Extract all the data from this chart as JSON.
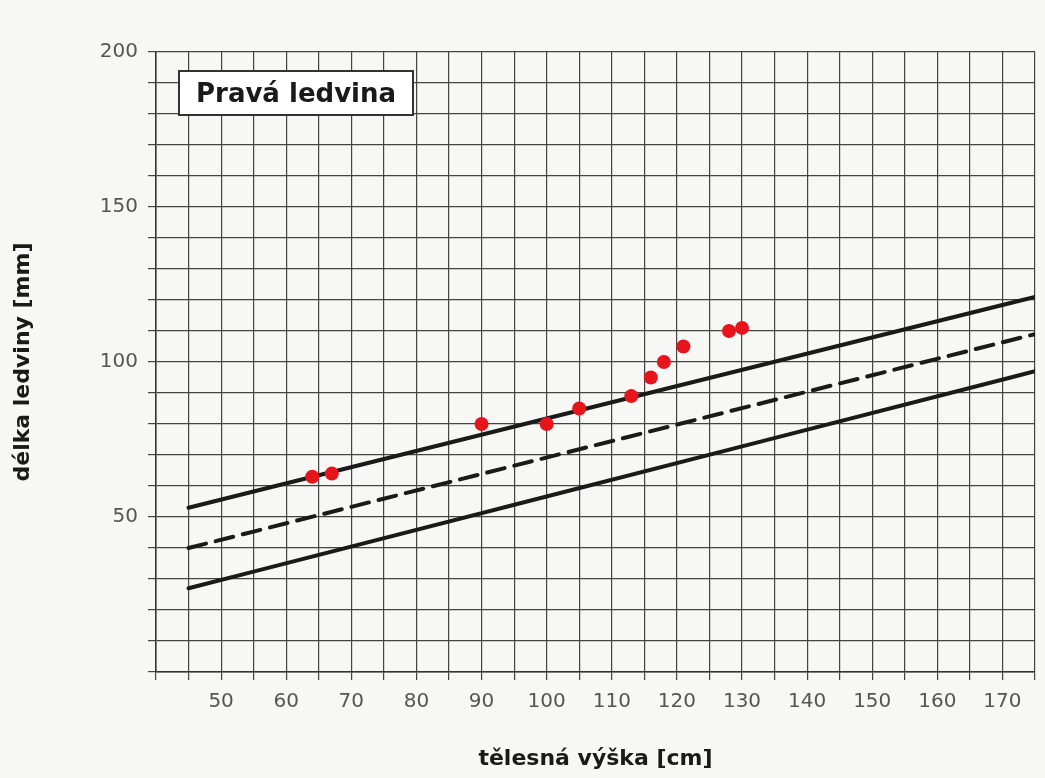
{
  "chart_data": {
    "type": "scatter",
    "title": "Pravá ledvina",
    "xlabel": "tělesná výška [cm]",
    "ylabel": "délka ledviny [mm]",
    "xlim": [
      40,
      175
    ],
    "ylim": [
      0,
      200
    ],
    "xticks": [
      {
        "value": 40,
        "label": null
      },
      {
        "value": 45,
        "label": null
      },
      50,
      {
        "value": 55,
        "label": null
      },
      60,
      {
        "value": 65,
        "label": null
      },
      70,
      {
        "value": 75,
        "label": null
      },
      80,
      {
        "value": 85,
        "label": null
      },
      90,
      {
        "value": 95,
        "label": null
      },
      100,
      {
        "value": 105,
        "label": null
      },
      110,
      {
        "value": 115,
        "label": null
      },
      120,
      {
        "value": 125,
        "label": null
      },
      130,
      {
        "value": 135,
        "label": null
      },
      140,
      {
        "value": 145,
        "label": null
      },
      150,
      {
        "value": 155,
        "label": null
      },
      160,
      {
        "value": 165,
        "label": null
      },
      170,
      {
        "value": 175,
        "label": null
      }
    ],
    "yticks": [
      {
        "value": 0,
        "label": null
      },
      {
        "value": 10,
        "label": null
      },
      {
        "value": 20,
        "label": null
      },
      {
        "value": 30,
        "label": null
      },
      {
        "value": 40,
        "label": null
      },
      50,
      {
        "value": 60,
        "label": null
      },
      {
        "value": 70,
        "label": null
      },
      {
        "value": 80,
        "label": null
      },
      {
        "value": 90,
        "label": null
      },
      100,
      {
        "value": 110,
        "label": null
      },
      {
        "value": 120,
        "label": null
      },
      {
        "value": 130,
        "label": null
      },
      {
        "value": 140,
        "label": null
      },
      150,
      {
        "value": 160,
        "label": null
      },
      {
        "value": 170,
        "label": null
      },
      {
        "value": 180,
        "label": null
      },
      {
        "value": 190,
        "label": null
      },
      200
    ],
    "grid": true,
    "series": [
      {
        "type": "line",
        "color": "#1a1a1a",
        "line_style": "solid",
        "x": [
          45,
          175
        ],
        "values": [
          53,
          121
        ]
      },
      {
        "type": "line",
        "color": "#1a1a1a",
        "line_style": "dashed",
        "x": [
          45,
          175
        ],
        "values": [
          40,
          109
        ]
      },
      {
        "type": "line",
        "color": "#1a1a1a",
        "line_style": "solid",
        "x": [
          45,
          175
        ],
        "values": [
          27,
          97
        ]
      },
      {
        "type": "scatter",
        "color": "#e8141c",
        "marker": "circle",
        "x": [
          64,
          67,
          90,
          100,
          105,
          113,
          116,
          118,
          121,
          128,
          130
        ],
        "values": [
          63,
          64,
          80,
          80,
          85,
          89,
          95,
          100,
          105,
          110,
          111
        ]
      }
    ]
  }
}
